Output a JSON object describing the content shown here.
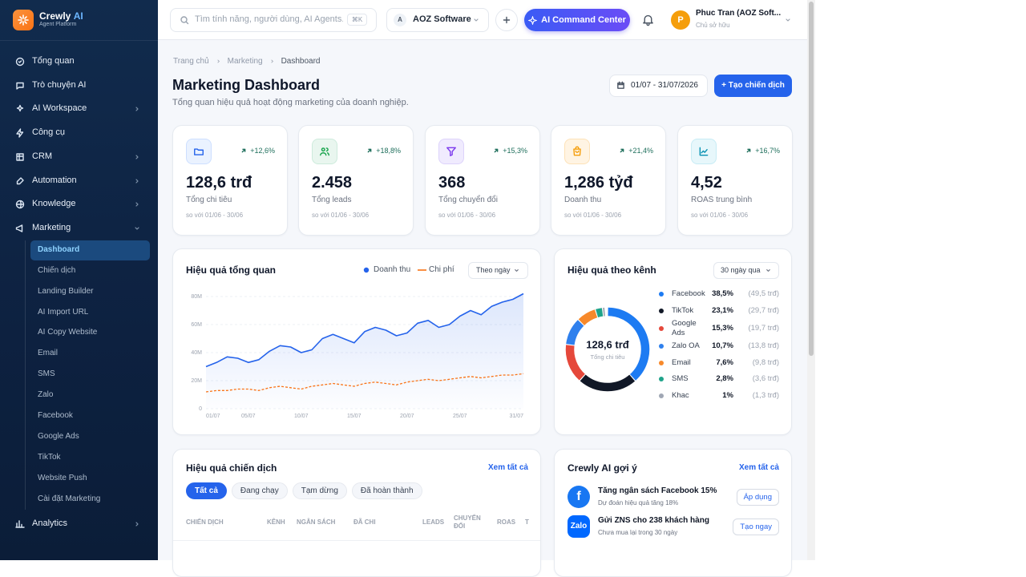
{
  "sidebar": {
    "brand": "Crewly",
    "brand_accent": "AI",
    "tagline": "Agent Platform",
    "menu": [
      {
        "label": "Tổng quan"
      },
      {
        "label": "Trò chuyện AI"
      },
      {
        "label": "AI Workspace",
        "has_submenu": true
      },
      {
        "label": "Công cụ"
      },
      {
        "label": "CRM",
        "has_submenu": true
      },
      {
        "label": "Automation",
        "has_submenu": true
      },
      {
        "label": "Knowledge",
        "has_submenu": true
      },
      {
        "label": "Marketing",
        "has_submenu": true,
        "expanded": true
      }
    ],
    "submenu": [
      {
        "label": "Dashboard",
        "active": true
      },
      {
        "label": "Chiến dịch"
      },
      {
        "label": "Landing Builder"
      },
      {
        "label": "AI Import URL"
      },
      {
        "label": "AI Copy Website"
      },
      {
        "label": "Email"
      },
      {
        "label": "SMS"
      },
      {
        "label": "Zalo"
      },
      {
        "label": "Facebook"
      },
      {
        "label": "Google Ads"
      },
      {
        "label": "TikTok"
      },
      {
        "label": "Website Push"
      },
      {
        "label": "Cài đặt Marketing"
      }
    ],
    "footer_item": {
      "label": "Analytics",
      "has_submenu": true
    }
  },
  "topbar": {
    "search_placeholder": "Tìm tính năng, người dùng, AI Agents...",
    "shortcut": "⌘K",
    "org_initial": "A",
    "org": "AOZ Software",
    "ai_button": "AI Command Center",
    "user_initial": "P",
    "user_name": "Phuc Tran (AOZ Soft...",
    "user_role": "Chủ sở hữu"
  },
  "header": {
    "breadcrumb": [
      "Trang chủ",
      "Marketing",
      "Dashboard"
    ],
    "title": "Marketing Dashboard",
    "subtitle": "Tổng quan hiệu quả hoạt động marketing của doanh nghiệp.",
    "date_range": "01/07 - 31/07/2026",
    "create_button": "+ Tạo chiến dịch"
  },
  "kpis": [
    {
      "value": "128,6 trđ",
      "label": "Tổng chi tiêu",
      "change": "+12,6%",
      "compare": "so với 01/06 - 30/06"
    },
    {
      "value": "2.458",
      "label": "Tổng leads",
      "change": "+18,8%",
      "compare": "so với 01/06 - 30/06"
    },
    {
      "value": "368",
      "label": "Tổng chuyển đổi",
      "change": "+15,3%",
      "compare": "so với 01/06 - 30/06"
    },
    {
      "value": "1,286 tỷđ",
      "label": "Doanh thu",
      "change": "+21,4%",
      "compare": "so với 01/06 - 30/06"
    },
    {
      "value": "4,52",
      "label": "ROAS trung bình",
      "change": "+16,7%",
      "compare": "so với 01/06 - 30/06"
    }
  ],
  "chart_data": [
    {
      "type": "line",
      "title": "Hiệu quả tổng quan",
      "filter": "Theo ngày",
      "x": [
        1,
        2,
        3,
        4,
        5,
        6,
        7,
        8,
        9,
        10,
        11,
        12,
        13,
        14,
        15,
        16,
        17,
        18,
        19,
        20,
        21,
        22,
        23,
        24,
        25,
        26,
        27,
        28,
        29,
        30,
        31
      ],
      "xlim": [
        1,
        31
      ],
      "xticks": [
        {
          "value": 1,
          "label": "01/07"
        },
        {
          "value": 5,
          "label": "05/07"
        },
        {
          "value": 10,
          "label": "10/07"
        },
        {
          "value": 15,
          "label": "15/07"
        },
        {
          "value": 20,
          "label": "20/07"
        },
        {
          "value": 25,
          "label": "25/07"
        },
        {
          "value": 31,
          "label": "31/07"
        }
      ],
      "ylim": [
        0,
        80
      ],
      "yticks": [
        0,
        {
          "value": 20,
          "label": "20M"
        },
        {
          "value": 40,
          "label": "40M"
        },
        {
          "value": 60,
          "label": "60M"
        },
        {
          "value": 80,
          "label": "80M"
        }
      ],
      "grid": true,
      "series": [
        {
          "name": "Doanh thu",
          "color": "#2563eb",
          "values": [
            30,
            33,
            37,
            36,
            33,
            35,
            41,
            45,
            44,
            40,
            42,
            50,
            53,
            50,
            47,
            55,
            58,
            56,
            52,
            54,
            61,
            63,
            58,
            60,
            66,
            70,
            67,
            73,
            76,
            78,
            82
          ]
        },
        {
          "name": "Chi phí",
          "color": "#f97316",
          "values": [
            12,
            13,
            13,
            14,
            14,
            13,
            15,
            16,
            15,
            14,
            16,
            17,
            18,
            17,
            16,
            18,
            19,
            18,
            17,
            19,
            20,
            21,
            20,
            21,
            22,
            23,
            22,
            23,
            24,
            24,
            25
          ]
        }
      ]
    },
    {
      "type": "pie",
      "title": "Hiệu quả theo kênh",
      "filter": "30 ngày qua",
      "center_value": "128,6 trđ",
      "center_label": "Tổng chi tiêu",
      "categories": [
        "Facebook",
        "TikTok",
        "Google Ads",
        "Zalo OA",
        "Email",
        "SMS",
        "Khac"
      ],
      "values": [
        38.5,
        23.1,
        15.3,
        10.7,
        7.6,
        2.8,
        1
      ],
      "value_labels": [
        "38,5%",
        "23,1%",
        "15,3%",
        "10,7%",
        "7,6%",
        "2,8%",
        "1%"
      ],
      "amounts": [
        "(49,5 trđ)",
        "(29,7 trđ)",
        "(19,7 trđ)",
        "(13,8 trđ)",
        "(9,8 trđ)",
        "(3,6 trđ)",
        "(1,3 trđ)"
      ],
      "colors": [
        "#1d7bf2",
        "#111827",
        "#e5483b",
        "#2f80ed",
        "#f7892b",
        "#1fa38a",
        "#a0a7b4"
      ]
    }
  ],
  "campaigns": {
    "title": "Hiệu quả chiến dịch",
    "link": "Xem tất cả",
    "tabs": [
      "Tất cả",
      "Đang chạy",
      "Tạm dừng",
      "Đã hoàn thành"
    ],
    "columns": [
      "CHIẾN DỊCH",
      "KÊNH",
      "NGÂN SÁCH",
      "ĐÃ CHI",
      "LEADS",
      "CHUYỂN ĐỔI",
      "ROAS",
      "T"
    ]
  },
  "suggestions": {
    "title": "Crewly AI gợi ý",
    "link": "Xem tất cả",
    "items": [
      {
        "badge": "f",
        "title": "Tăng ngân sách Facebook 15%",
        "detail": "Dự đoán hiệu quả tăng 18%",
        "action": "Áp dụng"
      },
      {
        "badge": "Zalo",
        "title": "Gửi ZNS cho 238 khách hàng",
        "detail": "Chưa mua lại trong 30 ngày",
        "action": "Tạo ngay"
      }
    ]
  }
}
